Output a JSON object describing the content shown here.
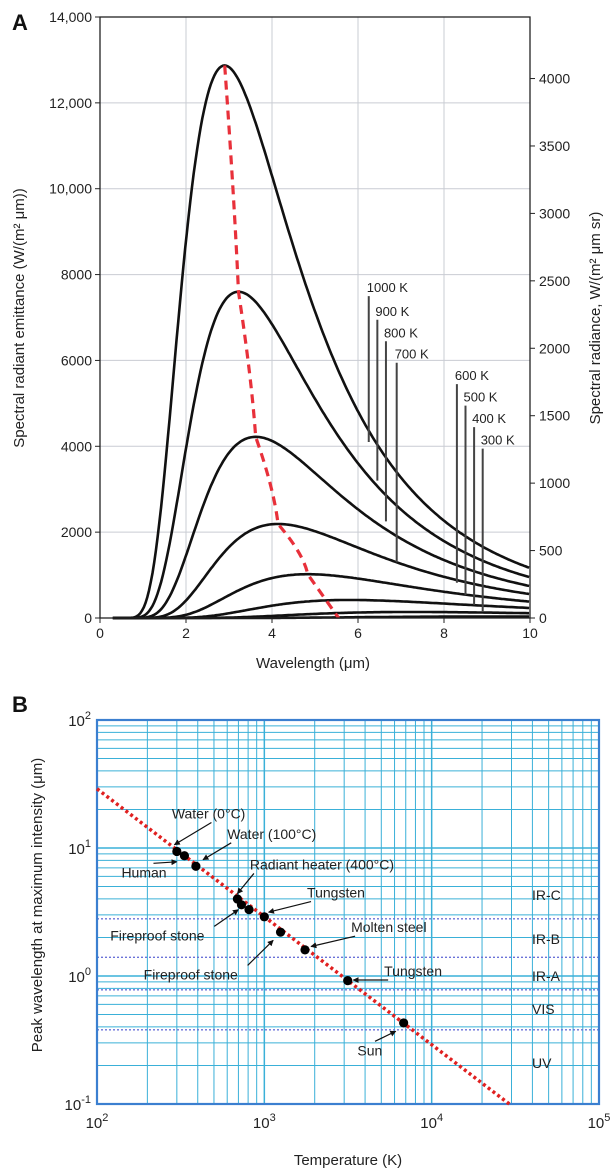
{
  "panelA": {
    "panel_label": "A",
    "chart_data": {
      "type": "line",
      "xlabel": "Wavelength (μm)",
      "ylabel": "Spectral radiant emittance (W/(m² μm))",
      "y2label": "Spectral radiance, W/(m² μm sr)",
      "xlim": [
        0,
        10
      ],
      "ylim": [
        0,
        14000
      ],
      "y2lim": [
        0,
        4456.3
      ],
      "x_ticks": [
        0,
        2,
        4,
        6,
        8,
        10
      ],
      "y_ticks": [
        0,
        2000,
        4000,
        6000,
        8000,
        10000,
        12000,
        14000
      ],
      "y_tick_labels": [
        "0",
        "2000",
        "4000",
        "6000",
        "8000",
        "10,000",
        "12,000",
        "14,000"
      ],
      "y2_ticks": [
        0,
        500,
        1000,
        1500,
        2000,
        2500,
        3000,
        3500,
        4000
      ],
      "grid": true,
      "curve_color": "#111111",
      "peak_locus_color": "#e8303a",
      "series": [
        {
          "name": "1000 K",
          "temperature": 1000,
          "peak_x": 2.9,
          "peak_y": 12870
        },
        {
          "name": "900 K",
          "temperature": 900,
          "peak_x": 3.22,
          "peak_y": 7600
        },
        {
          "name": "800 K",
          "temperature": 800,
          "peak_x": 3.62,
          "peak_y": 4220
        },
        {
          "name": "700 K",
          "temperature": 700,
          "peak_x": 4.14,
          "peak_y": 2190
        },
        {
          "name": "600 K",
          "temperature": 600,
          "peak_x": 4.83,
          "peak_y": 1020
        },
        {
          "name": "500 K",
          "temperature": 500,
          "peak_x": 5.8,
          "peak_y": 420
        },
        {
          "name": "400 K",
          "temperature": 400,
          "peak_x": 7.24,
          "peak_y": 140
        },
        {
          "name": "300 K",
          "temperature": 300,
          "peak_x": 9.66,
          "peak_y": 35
        }
      ],
      "labels": [
        {
          "text": "1000 K",
          "line_x": 6.25,
          "y_top": 7450,
          "y_bottom": 4100
        },
        {
          "text": "900 K",
          "line_x": 6.45,
          "y_top": 6900,
          "y_bottom": 3200
        },
        {
          "text": "800 K",
          "line_x": 6.65,
          "y_top": 6400,
          "y_bottom": 2250
        },
        {
          "text": "700 K",
          "line_x": 6.9,
          "y_top": 5900,
          "y_bottom": 1300
        },
        {
          "text": "600 K",
          "line_x": 8.3,
          "y_top": 5400,
          "y_bottom": 820
        },
        {
          "text": "500 K",
          "line_x": 8.5,
          "y_top": 4900,
          "y_bottom": 540
        },
        {
          "text": "400 K",
          "line_x": 8.7,
          "y_top": 4400,
          "y_bottom": 310
        },
        {
          "text": "300 K",
          "line_x": 8.9,
          "y_top": 3900,
          "y_bottom": 140
        }
      ]
    }
  },
  "panelB": {
    "panel_label": "B",
    "chart_data": {
      "type": "scatter",
      "xlabel": "Temperature (K)",
      "ylabel": "Peak wavelength at maximum intensity (μm)",
      "xscale": "log",
      "yscale": "log",
      "xlim": [
        100,
        100000
      ],
      "ylim": [
        0.1,
        100
      ],
      "x_tick_labels": [
        {
          "base": "10",
          "exp": "2",
          "value": 100
        },
        {
          "base": "10",
          "exp": "3",
          "value": 1000
        },
        {
          "base": "10",
          "exp": "4",
          "value": 10000
        },
        {
          "base": "10",
          "exp": "5",
          "value": 100000
        }
      ],
      "y_tick_labels": [
        {
          "base": "10",
          "exp": "-1",
          "value": 0.1
        },
        {
          "base": "10",
          "exp": "0",
          "value": 1
        },
        {
          "base": "10",
          "exp": "1",
          "value": 10
        },
        {
          "base": "10",
          "exp": "2",
          "value": 100
        }
      ],
      "grid": true,
      "grid_color": "#3ab0d8",
      "frame_color": "#3b7fd0",
      "trend_color": "#e02020",
      "trend_line": {
        "x": [
          100,
          30000
        ],
        "y": [
          29,
          0.097
        ]
      },
      "bands": [
        {
          "name": "IR-C",
          "boundary": 2.8,
          "label_y": 4.3
        },
        {
          "name": "IR-B",
          "boundary": 1.4,
          "label_y": 1.95
        },
        {
          "name": "IR-A",
          "boundary": 0.78,
          "label_y": 1.0
        },
        {
          "name": "VIS",
          "boundary": 0.38,
          "label_y": 0.55
        },
        {
          "name": "UV",
          "boundary": null,
          "label_y": 0.21
        }
      ],
      "points": [
        {
          "name": "Water (0°C)",
          "x": 300,
          "y": 9.4
        },
        {
          "name": "Human",
          "x": 333,
          "y": 8.7
        },
        {
          "name": "Water (100°C)",
          "x": 390,
          "y": 7.2
        },
        {
          "name": "Radiant heater (400°C)",
          "x": 690,
          "y": 4.0
        },
        {
          "name": "Fireproof stone",
          "x": 730,
          "y": 3.6
        },
        {
          "name": "Fireproof stone",
          "x": 810,
          "y": 3.3
        },
        {
          "name": "Tungsten",
          "x": 1000,
          "y": 2.9
        },
        {
          "name": "Tungsten",
          "x": 1250,
          "y": 2.2
        },
        {
          "name": "Molten steel",
          "x": 1750,
          "y": 1.6
        },
        {
          "name": "Tungsten",
          "x": 3150,
          "y": 0.92
        },
        {
          "name": "Sun",
          "x": 6800,
          "y": 0.43
        }
      ],
      "annotations": [
        {
          "text": "Water (0°C)",
          "tx": 280,
          "ty": 17,
          "ax": 290,
          "ay": 10.6
        },
        {
          "text": "Water (100°C)",
          "tx": 600,
          "ty": 11.8,
          "ax": 430,
          "ay": 8.1
        },
        {
          "text": "Human",
          "tx": 140,
          "ty": 5.9,
          "ax": 300,
          "ay": 7.8
        },
        {
          "text": "Radiant heater (400°C)",
          "tx": 820,
          "ty": 6.8,
          "ax": 690,
          "ay": 4.4
        },
        {
          "text": "Tungsten",
          "tx": 1800,
          "ty": 4.1,
          "ax": 1060,
          "ay": 3.15
        },
        {
          "text": "Fireproof stone",
          "tx": 120,
          "ty": 1.9,
          "ax": 700,
          "ay": 3.3
        },
        {
          "text": "Molten steel",
          "tx": 3300,
          "ty": 2.2,
          "ax": 1900,
          "ay": 1.7
        },
        {
          "text": "Fireproof stone",
          "tx": 190,
          "ty": 0.94,
          "ax": 1130,
          "ay": 1.9
        },
        {
          "text": "Tungsten",
          "tx": 5200,
          "ty": 1.0,
          "ax": 3400,
          "ay": 0.93
        },
        {
          "text": "Sun",
          "tx": 3600,
          "ty": 0.24,
          "ax": 6100,
          "ay": 0.37
        }
      ]
    }
  }
}
